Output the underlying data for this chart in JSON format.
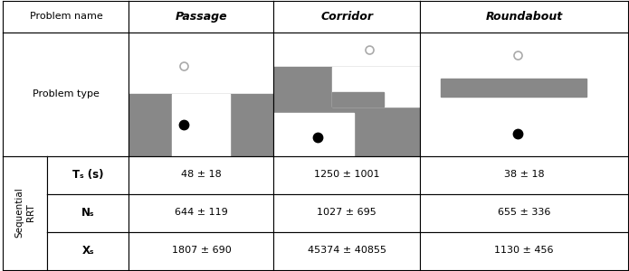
{
  "problem_names": [
    "Passage",
    "Corridor",
    "Roundabout"
  ],
  "metrics": [
    {
      "label": "Tₛ (s)",
      "values": [
        "48 ± 18",
        "1250 ± 1001",
        "38 ± 18"
      ]
    },
    {
      "label": "Nₛ",
      "values": [
        "644 ± 119",
        "1027 ± 695",
        "655 ± 336"
      ]
    },
    {
      "label": "Xₛ",
      "values": [
        "1807 ± 690",
        "45374 ± 40855",
        "1130 ± 456"
      ]
    }
  ],
  "gray": "#888888",
  "white": "#ffffff",
  "black": "#000000",
  "col_bounds": [
    0.005,
    0.075,
    0.205,
    0.435,
    0.668,
    0.998
  ],
  "row_bounds": [
    0.005,
    0.145,
    0.285,
    0.425,
    0.88,
    0.998
  ]
}
